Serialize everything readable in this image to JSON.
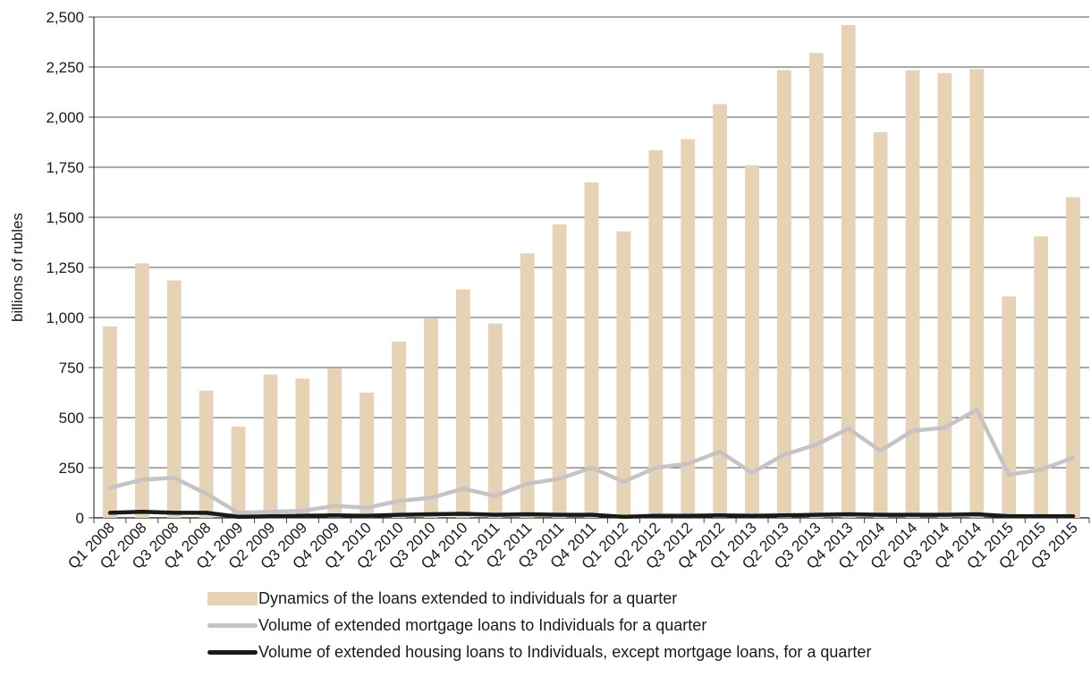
{
  "chart_data": {
    "type": "bar",
    "ylabel": "billions of rubles",
    "xlabel": "",
    "ylim": [
      0,
      2500
    ],
    "yticks": [
      0,
      250,
      500,
      750,
      1000,
      1250,
      1500,
      1750,
      2000,
      2250,
      2500
    ],
    "ytick_labels": [
      "0",
      "250",
      "500",
      "750",
      "1,000",
      "1,250",
      "1,500",
      "1,750",
      "2,000",
      "2,250",
      "2,500"
    ],
    "grid": true,
    "legend_position": "bottom",
    "categories": [
      "Q1 2008",
      "Q2 2008",
      "Q3 2008",
      "Q4 2008",
      "Q1 2009",
      "Q2 2009",
      "Q3 2009",
      "Q4 2009",
      "Q1 2010",
      "Q2 2010",
      "Q3 2010",
      "Q4 2010",
      "Q1 2011",
      "Q2 2011",
      "Q3 2011",
      "Q4 2011",
      "Q1 2012",
      "Q2 2012",
      "Q3 2012",
      "Q4 2012",
      "Q1 2013",
      "Q2 2013",
      "Q3 2013",
      "Q4 2013",
      "Q1 2014",
      "Q2 2014",
      "Q3 2014",
      "Q4 2014",
      "Q1 2015",
      "Q2 2015",
      "Q3 2015"
    ],
    "category_labels": [
      "Q1 2008",
      "Q2 2008",
      "Q3 2008",
      "Q4 2008",
      "Q1 2009",
      "Q2 2009",
      "Q3 2009",
      "Q4 2009",
      "Q1 2010",
      "Q2 2010",
      "Q3 2010",
      "Q4 2010",
      "Q1 2011",
      "Q2 2011",
      "Q3 2011",
      "Q4 2011",
      "Q1 2012",
      "Q2 2012",
      "Q3 2012",
      "Q4 2012",
      "Q1 2013",
      "Q2 2013",
      "Q3 2013",
      "Q4 2013",
      "Q1 2014",
      "Q2 2014",
      "Q3 2014",
      "Q4 2014",
      "Q1 2015",
      "Q2 2015",
      "Q3 2015"
    ],
    "series": [
      {
        "name": "Dynamics of the loans extended to individuals for a quarter",
        "kind": "bar",
        "color": "#e6d2b5",
        "values": [
          955,
          1270,
          1185,
          635,
          455,
          715,
          695,
          745,
          625,
          880,
          995,
          1140,
          970,
          1320,
          1465,
          1675,
          1430,
          1835,
          1890,
          2065,
          1760,
          2235,
          2320,
          2460,
          1925,
          2235,
          2220,
          2240,
          1105,
          1405,
          1600
        ]
      },
      {
        "name": "Volume of extended mortgage loans to Individuals  for a quarter",
        "kind": "line",
        "color": "#c4c4c4",
        "values": [
          150,
          190,
          200,
          120,
          25,
          30,
          35,
          60,
          50,
          85,
          100,
          145,
          110,
          170,
          195,
          250,
          180,
          250,
          270,
          330,
          225,
          315,
          365,
          445,
          335,
          435,
          450,
          540,
          215,
          240,
          300
        ]
      },
      {
        "name": "Volume of extended housing loans to Individuals, except mortgage loans, for a quarter",
        "kind": "line",
        "color": "#1a1a1a",
        "values": [
          25,
          30,
          25,
          25,
          5,
          8,
          10,
          12,
          10,
          15,
          18,
          20,
          15,
          18,
          15,
          15,
          5,
          10,
          10,
          12,
          10,
          12,
          15,
          18,
          15,
          15,
          15,
          18,
          8,
          8,
          8
        ]
      }
    ]
  }
}
